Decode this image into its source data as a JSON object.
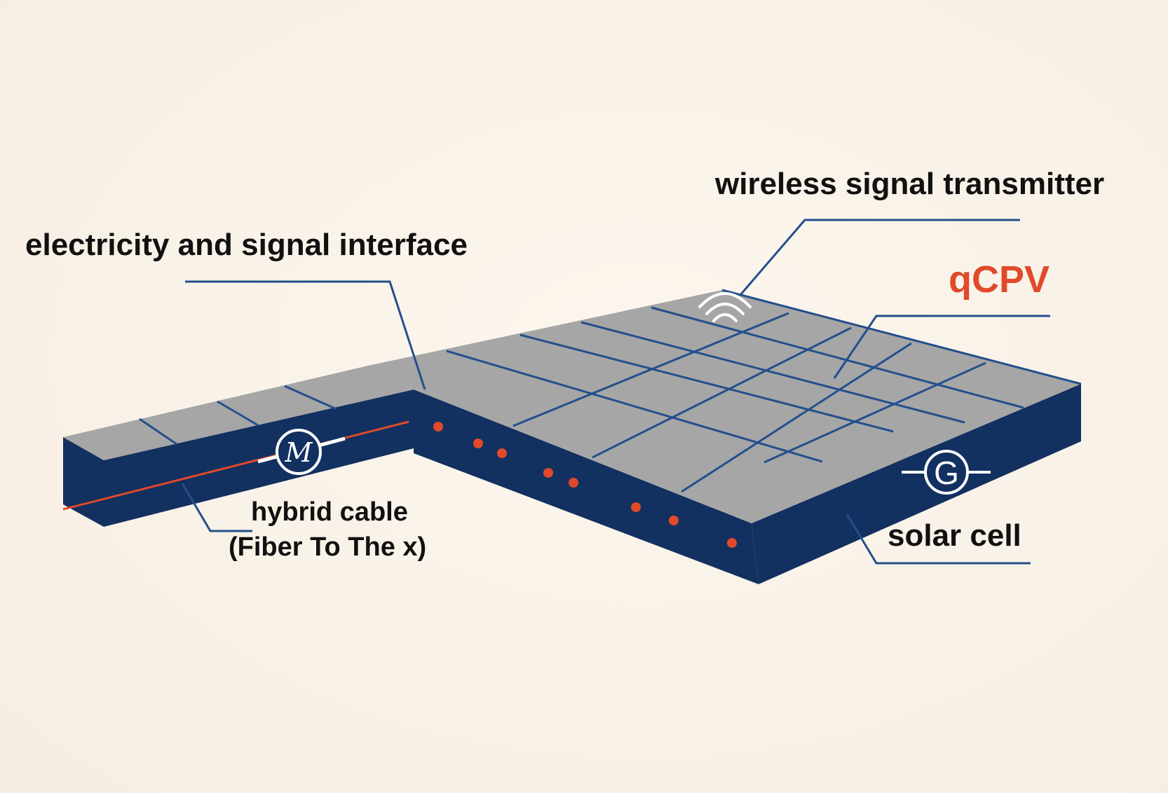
{
  "labels": {
    "wireless_signal_transmitter": "wireless signal transmitter",
    "electricity_and_signal_interface": "electricity and signal interface",
    "qcpv": "qCPV",
    "hybrid_cable_line1": "hybrid cable",
    "hybrid_cable_line2": "(Fiber To The x)",
    "solar_cell": "solar cell"
  },
  "icons": {
    "wireless": "wifi-signal-icon",
    "motor": "motor-m-icon",
    "generator": "generator-g-icon"
  },
  "colors": {
    "background": "#faf3ea",
    "panel_face": "#a6a6a6",
    "panel_side": "#123060",
    "grid_line": "#234f8c",
    "leader_line": "#234f8c",
    "dot": "#e04a2a",
    "cable": "#e04a2a",
    "accent_text": "#e04a2a"
  }
}
